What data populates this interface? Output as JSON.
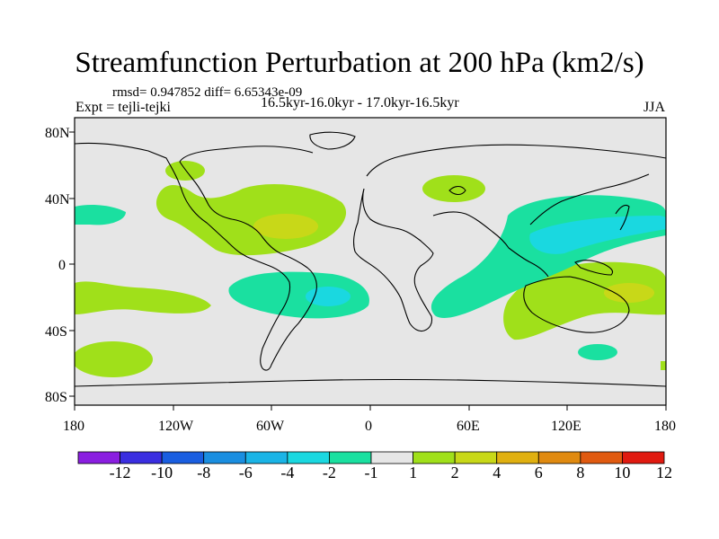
{
  "title": "Streamfunction Perturbation at 200 hPa (km2/s)",
  "stats": "rmsd= 0.947852 diff= 6.65343e-09",
  "experiment": "Expt = tejli-tejki",
  "period": "16.5kyr-16.0kyr - 17.0kyr-16.5kyr",
  "season": "JJA",
  "lat_labels": [
    "80N",
    "40N",
    "0",
    "40S",
    "80S"
  ],
  "lon_labels": [
    "180",
    "120W",
    "60W",
    "0",
    "60E",
    "120E",
    "180"
  ],
  "colorbar": {
    "labels": [
      "-12",
      "-10",
      "-8",
      "-6",
      "-4",
      "-2",
      "-1",
      "1",
      "2",
      "4",
      "6",
      "8",
      "10",
      "12"
    ],
    "colors": [
      "#8a1ee0",
      "#3a2ee0",
      "#1a5ee0",
      "#1a8ee0",
      "#1ab4e6",
      "#1ad8e0",
      "#1ae0a0",
      "#e6e6e6",
      "#a0e01a",
      "#c8d818",
      "#e0b010",
      "#e08a10",
      "#e05a10",
      "#e01a10"
    ]
  },
  "background_color": "#e6e6e6"
}
